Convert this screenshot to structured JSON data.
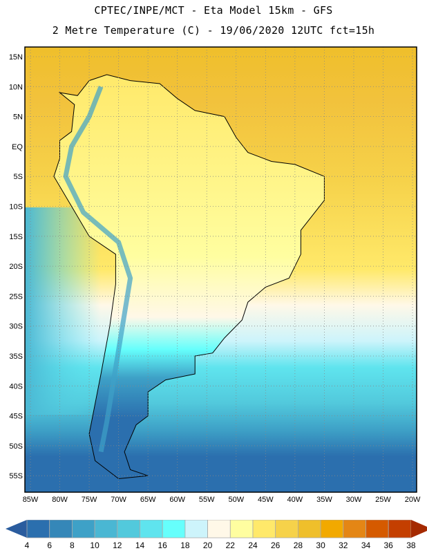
{
  "title": {
    "line1": "CPTEC/INPE/MCT -  Eta Model 15km - GFS",
    "line2": "2 Metre Temperature (C) - 19/06/2020 12UTC fct=15h"
  },
  "map": {
    "lat_labels": [
      "15N",
      "10N",
      "5N",
      "EQ",
      "5S",
      "10S",
      "15S",
      "20S",
      "25S",
      "30S",
      "35S",
      "40S",
      "45S",
      "50S",
      "55S"
    ],
    "lon_labels": [
      "85W",
      "80W",
      "75W",
      "70W",
      "65W",
      "60W",
      "55W",
      "50W",
      "45W",
      "40W",
      "35W",
      "30W",
      "25W",
      "20W"
    ]
  },
  "colorbar": {
    "labels": [
      "4",
      "6",
      "8",
      "10",
      "12",
      "14",
      "16",
      "18",
      "20",
      "22",
      "24",
      "26",
      "28",
      "30",
      "32",
      "34",
      "36",
      "38"
    ],
    "below_color": "#2a5c9e",
    "above_color": "#a52a00",
    "colors": [
      "#2b6fae",
      "#3587b8",
      "#3ea1c7",
      "#4ab7d3",
      "#52c9dc",
      "#5fe4ee",
      "#66fffc",
      "#cdf4fb",
      "#fff8e8",
      "#fffea0",
      "#ffe96a",
      "#f6d24a",
      "#efbf2b",
      "#f2a900",
      "#e48615",
      "#d55a00",
      "#c43f00"
    ]
  }
}
